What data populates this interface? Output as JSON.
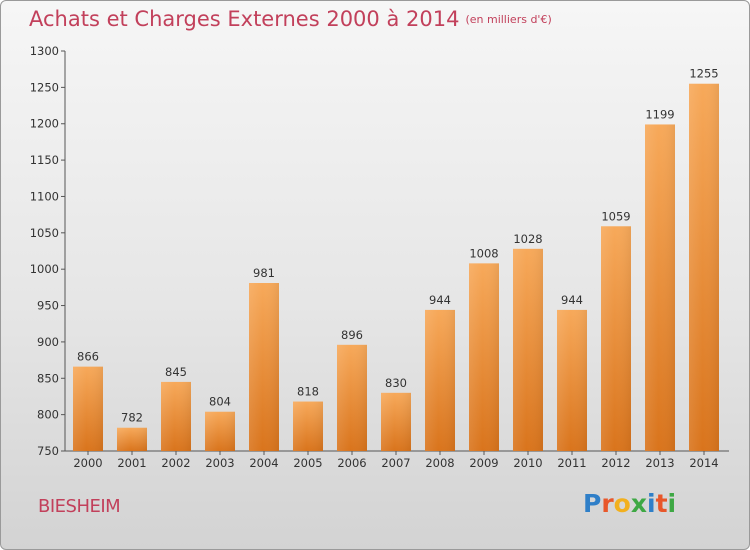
{
  "header": {
    "title": "Achats et Charges Externes 2000 à 2014",
    "unit": "(en milliers d'€)"
  },
  "footer": {
    "city": "BIESHEIM",
    "logo": "Proxiti"
  },
  "colors": {
    "title": "#c2405b",
    "bar_top": "#f7a95a",
    "bar_bottom": "#d9741c",
    "logo_letters": [
      "#2f7fc8",
      "#e8572a",
      "#f2b01e",
      "#3ea844",
      "#2f7fc8",
      "#e8572a",
      "#3ea844"
    ]
  },
  "chart_data": {
    "type": "bar",
    "categories": [
      "2000",
      "2001",
      "2002",
      "2003",
      "2004",
      "2005",
      "2006",
      "2007",
      "2008",
      "2009",
      "2010",
      "2011",
      "2012",
      "2013",
      "2014"
    ],
    "values": [
      866,
      782,
      845,
      804,
      981,
      818,
      896,
      830,
      944,
      1008,
      1028,
      944,
      1059,
      1199,
      1255
    ],
    "value_labels": [
      "866",
      "782",
      "845",
      "804",
      "981",
      "818",
      "896",
      "830",
      "944",
      "1008",
      "1028",
      "944",
      "1059",
      "1199",
      "1255"
    ],
    "y_ticks": [
      750,
      800,
      850,
      900,
      950,
      1000,
      1050,
      1100,
      1150,
      1200,
      1250,
      1300
    ],
    "ylim": [
      750,
      1300
    ],
    "grid": false
  }
}
